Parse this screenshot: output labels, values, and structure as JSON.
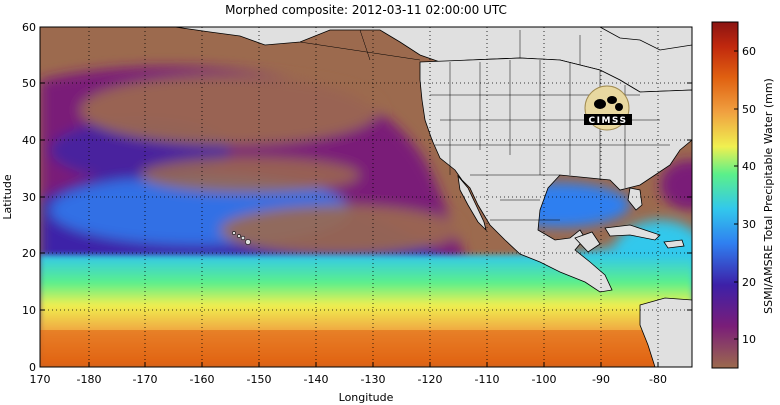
{
  "title": "Morphed composite: 2012-03-11 02:00:00 UTC",
  "axes": {
    "xlabel": "Longitude",
    "ylabel": "Latitude",
    "x_ticks": [
      "170",
      "-180",
      "-170",
      "-160",
      "-150",
      "-140",
      "-130",
      "-120",
      "-110",
      "-100",
      "-90",
      "-80"
    ],
    "y_ticks": [
      "0",
      "10",
      "20",
      "30",
      "40",
      "50",
      "60"
    ]
  },
  "colorbar": {
    "label": "SSMI/AMSRE Total Precipitable Water (mm)",
    "ticks": [
      "10",
      "20",
      "30",
      "40",
      "50",
      "60"
    ],
    "range_mm": [
      5,
      65
    ],
    "colors": [
      "#9c6a4e",
      "#7a1e78",
      "#3d20a8",
      "#2f7ff0",
      "#32c8ec",
      "#5bf08a",
      "#f0f050",
      "#f0a040",
      "#e06010",
      "#c0280e",
      "#8a1412"
    ]
  },
  "logo": {
    "text": "CIMSS"
  },
  "map": {
    "land_color": "#e0e0e0",
    "grid": "dotted"
  }
}
